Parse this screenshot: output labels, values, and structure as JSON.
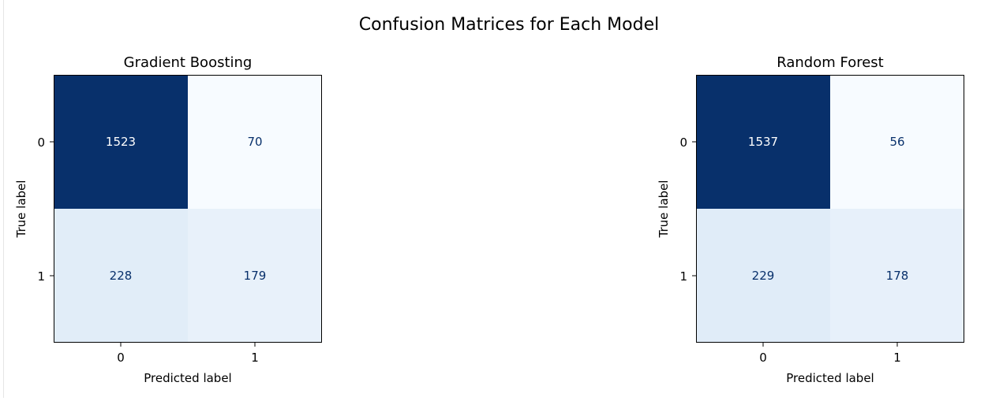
{
  "figure": {
    "title": "Confusion Matrices for Each Model"
  },
  "chart_data": [
    {
      "type": "heatmap",
      "title": "Gradient Boosting",
      "xlabel": "Predicted label",
      "ylabel": "True label",
      "x_categories": [
        "0",
        "1"
      ],
      "y_categories": [
        "0",
        "1"
      ],
      "values": [
        [
          1523,
          70
        ],
        [
          228,
          179
        ]
      ],
      "colormap": "Blues",
      "colorbar": false,
      "grid": false
    },
    {
      "type": "heatmap",
      "title": "Random Forest",
      "xlabel": "Predicted label",
      "ylabel": "True label",
      "x_categories": [
        "0",
        "1"
      ],
      "y_categories": [
        "0",
        "1"
      ],
      "values": [
        [
          1537,
          56
        ],
        [
          229,
          178
        ]
      ],
      "colormap": "Blues",
      "colorbar": false,
      "grid": false
    }
  ]
}
